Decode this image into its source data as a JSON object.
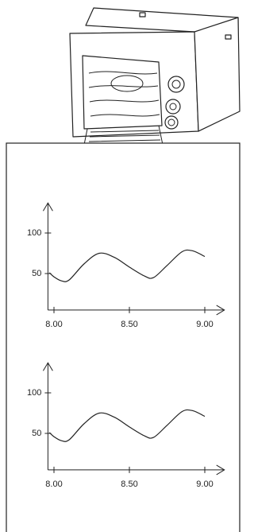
{
  "chart_data": [
    {
      "type": "line",
      "x": [
        7.97,
        8.0,
        8.05,
        8.1,
        8.2,
        8.3,
        8.4,
        8.5,
        8.6,
        8.66,
        8.75,
        8.85,
        8.92,
        9.0
      ],
      "series": [
        {
          "color": "#222222",
          "values": [
            51,
            46,
            41,
            42,
            62,
            75,
            70,
            58,
            47,
            45,
            60,
            77,
            78,
            71
          ]
        }
      ],
      "xlim": [
        7.96,
        9.13
      ],
      "xticks": [
        {
          "value": 8,
          "label": "8.00"
        },
        {
          "value": 8.5,
          "label": "8.50"
        },
        {
          "value": 9,
          "label": "9.00"
        }
      ],
      "ylim": [
        5,
        137
      ],
      "yticks": [
        50,
        100
      ]
    },
    {
      "type": "line",
      "x": [
        7.97,
        8.0,
        8.05,
        8.1,
        8.2,
        8.3,
        8.4,
        8.5,
        8.6,
        8.66,
        8.75,
        8.85,
        8.92,
        9.0
      ],
      "series": [
        {
          "color": "#222222",
          "values": [
            51,
            46,
            41,
            42,
            62,
            75,
            70,
            58,
            47,
            45,
            60,
            77,
            78,
            71
          ]
        }
      ],
      "xlim": [
        7.96,
        9.13
      ],
      "xticks": [
        {
          "value": 8,
          "label": "8.00"
        },
        {
          "value": 8.5,
          "label": "8.50"
        },
        {
          "value": 9,
          "label": "9.00"
        }
      ],
      "ylim": [
        5,
        137
      ],
      "yticks": [
        50,
        100
      ]
    }
  ]
}
